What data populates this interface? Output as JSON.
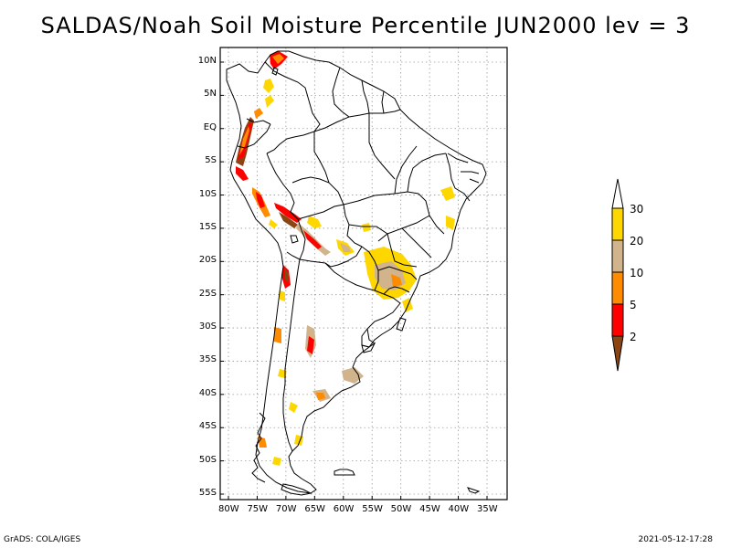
{
  "title": "SALDAS/Noah Soil Moisture Percentile JUN2000 lev = 3",
  "footer": {
    "left": "GrADS: COLA/IGES",
    "right": "2021-05-12-17:28"
  },
  "axes": {
    "lat_labels": [
      "10N",
      "5N",
      "EQ",
      "5S",
      "10S",
      "15S",
      "20S",
      "25S",
      "30S",
      "35S",
      "40S",
      "45S",
      "50S",
      "55S"
    ],
    "lon_labels": [
      "80W",
      "75W",
      "70W",
      "65W",
      "60W",
      "55W",
      "50W",
      "45W",
      "40W",
      "35W"
    ],
    "lat_values": [
      10,
      5,
      0,
      -5,
      -10,
      -15,
      -20,
      -25,
      -30,
      -35,
      -40,
      -45,
      -50,
      -55
    ],
    "lon_values": [
      -80,
      -75,
      -70,
      -65,
      -60,
      -55,
      -50,
      -45,
      -40,
      -35
    ]
  },
  "colorbar": {
    "levels": [
      "2",
      "5",
      "10",
      "20",
      "30"
    ],
    "colors": [
      "#8b4513",
      "#ff0000",
      "#ff8c00",
      "#d2b48c",
      "#ffd700",
      "#ffffff"
    ]
  },
  "palette": {
    "brown": "#8b4513",
    "red": "#ff0000",
    "orange": "#ff8c00",
    "tan": "#d2b48c",
    "gold": "#ffd700",
    "grid": "#9a9a9a",
    "outline": "#000000"
  }
}
